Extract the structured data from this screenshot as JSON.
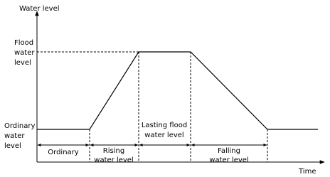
{
  "axes": {
    "y_label": "Water level",
    "x_label": "Time"
  },
  "levels": [
    {
      "label": [
        "Flood",
        "water",
        "level"
      ]
    },
    {
      "label": [
        "Ordinary",
        "water",
        "level"
      ]
    }
  ],
  "phases": [
    {
      "label": [
        "Ordinary"
      ]
    },
    {
      "label": [
        "Rising",
        "water level"
      ]
    },
    {
      "label": [
        "Lasting flood",
        "water level"
      ]
    },
    {
      "label": [
        "Falling",
        "water level"
      ]
    }
  ]
}
